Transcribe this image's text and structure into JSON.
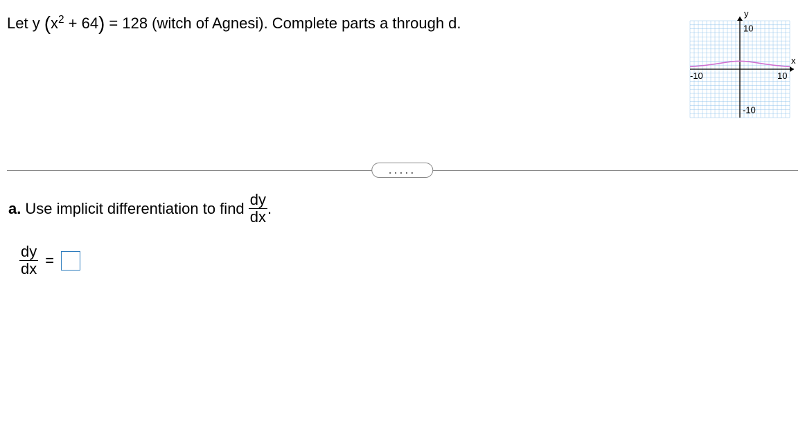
{
  "question": {
    "prefix": "Let y",
    "lparen": "(",
    "expr_left": "x",
    "expr_exp": "2",
    "expr_plus": " + 64",
    "rparen": ")",
    "after": " = 128 (witch of Agnesi). Complete parts a through d."
  },
  "divider": {
    "dots": "....."
  },
  "partA": {
    "label": "a.",
    "text_before": " Use implicit differentiation to find ",
    "frac_num": "dy",
    "frac_den": "dx",
    "period": "."
  },
  "answer": {
    "frac_num": "dy",
    "frac_den": "dx",
    "equals": "="
  },
  "graph": {
    "y_label": "y",
    "x_label": "x",
    "top_tick": "10",
    "bottom_tick": "-10",
    "left_tick": "-10",
    "right_tick": "10",
    "xmin": -12,
    "xmax": 12,
    "ymin": -12,
    "ymax": 12,
    "grid_major": 2,
    "curve_color": "#d070d0",
    "axis_color": "#000000",
    "grid_color": "#7bb8e8",
    "curve": {
      "equation": "y = 128 / (x^2 + 64)",
      "points": [
        [
          -12,
          0.615
        ],
        [
          -11,
          0.692
        ],
        [
          -10,
          0.78
        ],
        [
          -9,
          0.883
        ],
        [
          -8,
          1.0
        ],
        [
          -7,
          1.133
        ],
        [
          -6,
          1.28
        ],
        [
          -5,
          1.438
        ],
        [
          -4,
          1.6
        ],
        [
          -3,
          1.753
        ],
        [
          -2,
          1.882
        ],
        [
          -1,
          1.969
        ],
        [
          0,
          2.0
        ],
        [
          1,
          1.969
        ],
        [
          2,
          1.882
        ],
        [
          3,
          1.753
        ],
        [
          4,
          1.6
        ],
        [
          5,
          1.438
        ],
        [
          6,
          1.28
        ],
        [
          7,
          1.133
        ],
        [
          8,
          1.0
        ],
        [
          9,
          0.883
        ],
        [
          10,
          0.78
        ],
        [
          11,
          0.692
        ],
        [
          12,
          0.615
        ]
      ]
    },
    "label_fontsize": 13
  }
}
